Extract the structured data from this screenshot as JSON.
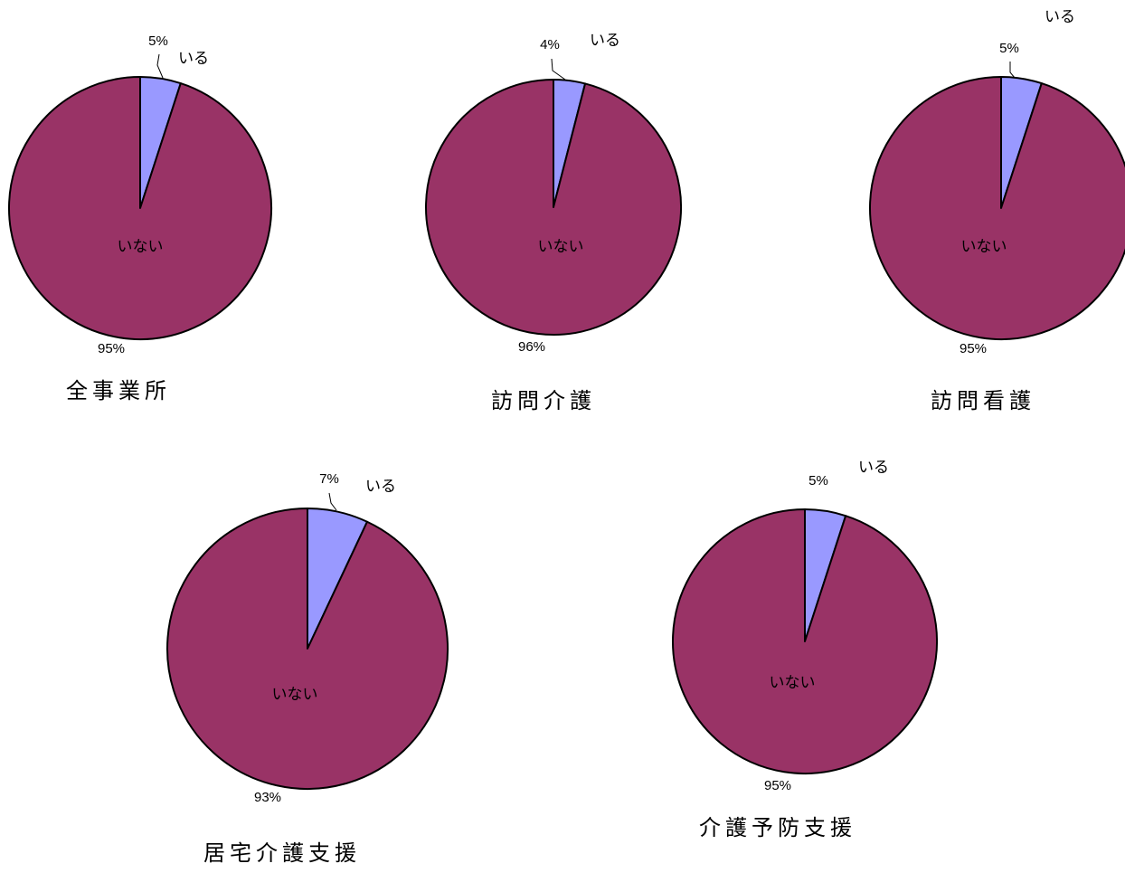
{
  "chart_data": [
    {
      "type": "pie",
      "title": "全事業所",
      "categories": [
        "いる",
        "いない"
      ],
      "values": [
        5,
        95
      ],
      "labels": [
        "5%",
        "95%"
      ],
      "colors": [
        "#9999ff",
        "#993366"
      ]
    },
    {
      "type": "pie",
      "title": "訪問介護",
      "categories": [
        "いる",
        "いない"
      ],
      "values": [
        4,
        96
      ],
      "labels": [
        "4%",
        "96%"
      ],
      "colors": [
        "#9999ff",
        "#993366"
      ]
    },
    {
      "type": "pie",
      "title": "訪問看護",
      "categories": [
        "いる",
        "いない"
      ],
      "values": [
        5,
        95
      ],
      "labels": [
        "5%",
        "95%"
      ],
      "colors": [
        "#9999ff",
        "#993366"
      ]
    },
    {
      "type": "pie",
      "title": "居宅介護支援",
      "categories": [
        "いる",
        "いない"
      ],
      "values": [
        7,
        93
      ],
      "labels": [
        "7%",
        "93%"
      ],
      "colors": [
        "#9999ff",
        "#993366"
      ]
    },
    {
      "type": "pie",
      "title": "介護予防支援",
      "categories": [
        "いる",
        "いない"
      ],
      "values": [
        5,
        95
      ],
      "labels": [
        "5%",
        "95%"
      ],
      "colors": [
        "#9999ff",
        "#993366"
      ]
    }
  ]
}
